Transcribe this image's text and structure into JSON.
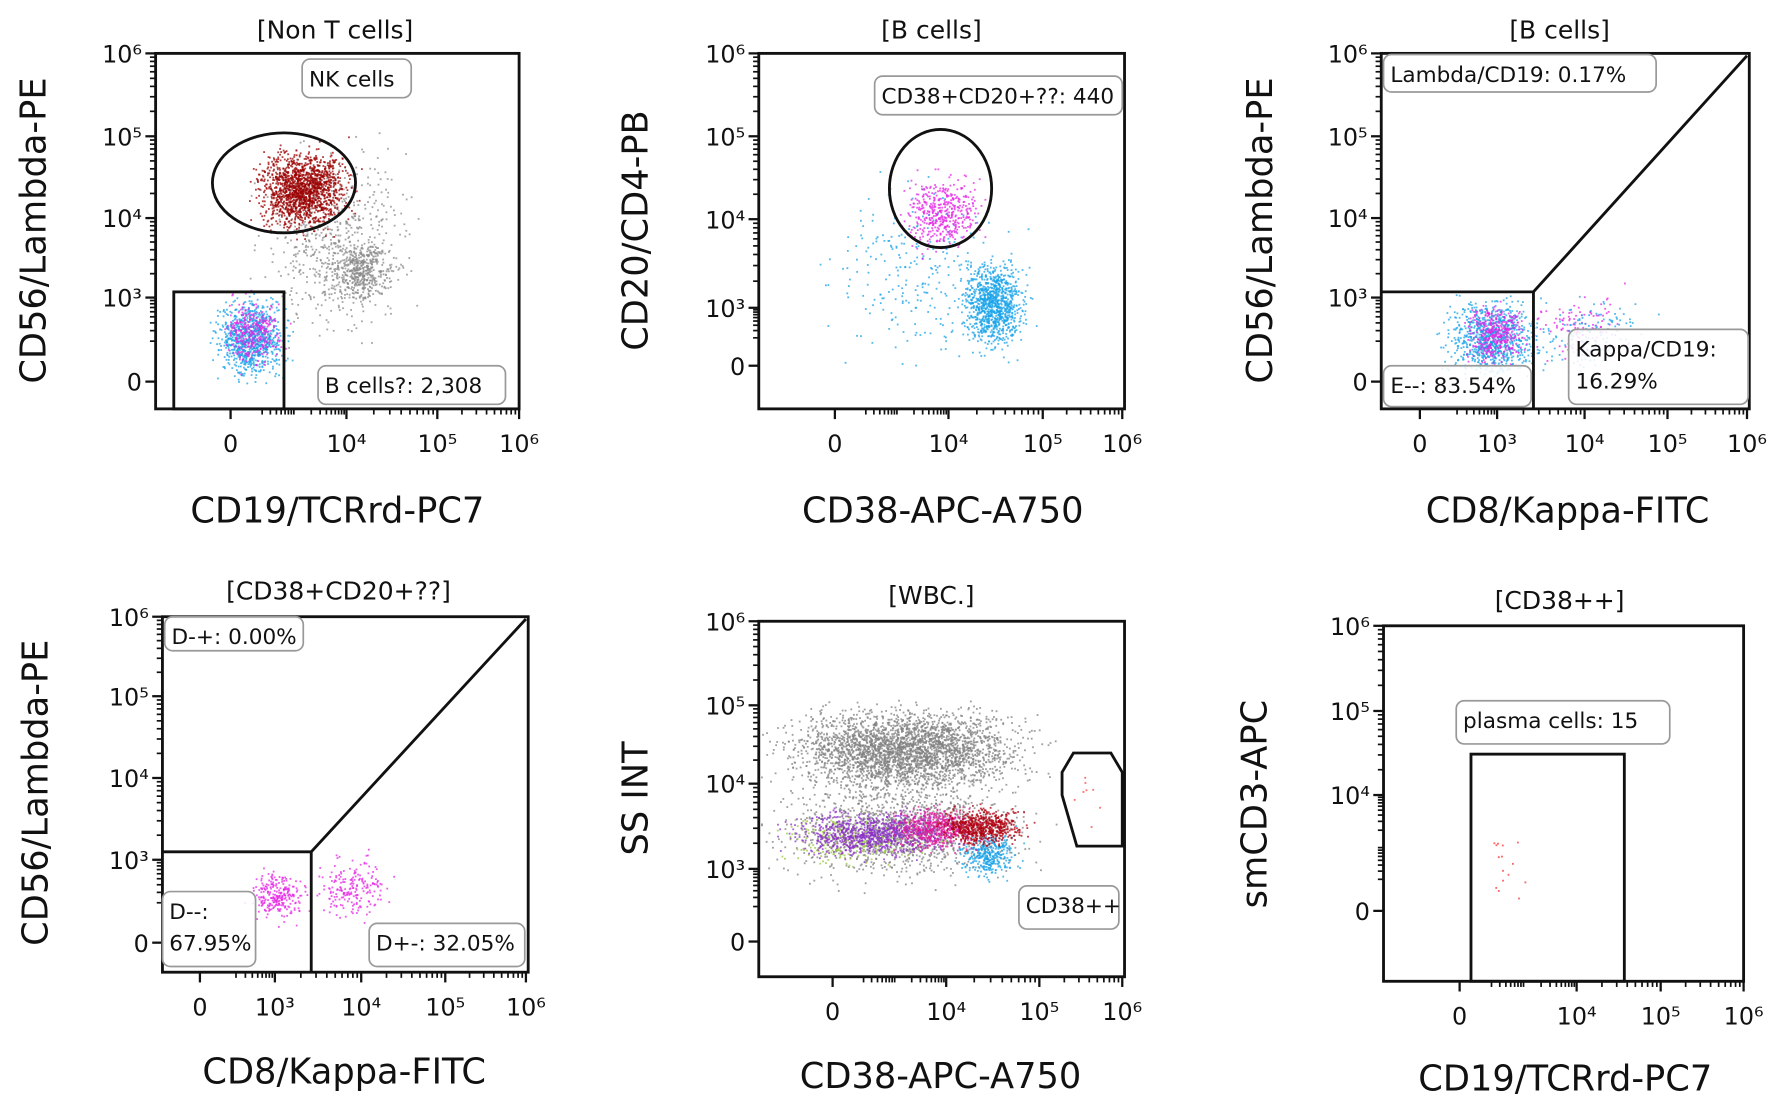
{
  "chart_data": [
    {
      "type": "scatter",
      "title": "[Non T cells]",
      "xlabel": "CD19/TCRrd-PC7",
      "ylabel": "CD56/Lambda-PE",
      "x_ticks": [
        "0",
        "10⁴",
        "10⁵",
        "10⁶"
      ],
      "y_ticks": [
        "0",
        "10³",
        "10⁴",
        "10⁵",
        "10⁶"
      ],
      "scale": "biexponential",
      "populations": [
        {
          "color": "#8a8a8a",
          "x": [
            300,
            40000
          ],
          "y": [
            400,
            60000
          ],
          "n": 600
        },
        {
          "color": "#8a8a8a",
          "x": [
            5000,
            30000
          ],
          "y": [
            1000,
            5000
          ],
          "n": 450
        },
        {
          "color": "#9b0000",
          "x": [
            200,
            8000
          ],
          "y": [
            8000,
            60000
          ],
          "n": 1500
        },
        {
          "color": "#1aa3e8",
          "x": [
            -50,
            500
          ],
          "y": [
            30,
            800
          ],
          "n": 900
        },
        {
          "color": "#e526e5",
          "x": [
            -20,
            450
          ],
          "y": [
            80,
            900
          ],
          "n": 300
        }
      ],
      "gates": [
        {
          "label": [
            "NK cells"
          ]
        },
        {
          "label": [
            "B cells?: 2,308"
          ]
        }
      ]
    },
    {
      "type": "scatter",
      "title": "[B cells]",
      "xlabel": "CD38-APC-A750",
      "ylabel": "CD20/CD4-PB",
      "x_ticks": [
        "0",
        "10⁴",
        "10⁵",
        "10⁶"
      ],
      "y_ticks": [
        "0",
        "10³",
        "10⁴",
        "10⁵",
        "10⁶"
      ],
      "scale": "biexponential",
      "populations": [
        {
          "color": "#1aa3e8",
          "x": [
            15000,
            60000
          ],
          "y": [
            150,
            3000
          ],
          "n": 1000
        },
        {
          "color": "#1aa3e8",
          "x": [
            0,
            40000
          ],
          "y": [
            100,
            20000
          ],
          "n": 260
        },
        {
          "color": "#e526e5",
          "x": [
            1500,
            20000
          ],
          "y": [
            5000,
            30000
          ],
          "n": 440
        }
      ],
      "gates": [
        {
          "label": [
            "CD38+CD20+??: 440"
          ]
        }
      ]
    },
    {
      "type": "scatter",
      "title": "[B cells]",
      "xlabel": "CD8/Kappa-FITC",
      "ylabel": "CD56/Lambda-PE",
      "x_ticks": [
        "0",
        "10³",
        "10⁴",
        "10⁵",
        "10⁶"
      ],
      "y_ticks": [
        "0",
        "10³",
        "10⁴",
        "10⁵",
        "10⁶"
      ],
      "scale": "biexponential",
      "populations": [
        {
          "color": "#1aa3e8",
          "x": [
            150,
            2500
          ],
          "y": [
            30,
            800
          ],
          "n": 900
        },
        {
          "color": "#e526e5",
          "x": [
            300,
            2000
          ],
          "y": [
            80,
            700
          ],
          "n": 350
        },
        {
          "color": "#e526e5",
          "x": [
            3000,
            25000
          ],
          "y": [
            100,
            1000
          ],
          "n": 120
        },
        {
          "color": "#1aa3e8",
          "x": [
            3000,
            40000
          ],
          "y": [
            50,
            900
          ],
          "n": 150
        }
      ],
      "gates": [
        {
          "label": [
            "Lambda/CD19: 0.17%"
          ]
        },
        {
          "label": [
            "E--: 83.54%"
          ]
        },
        {
          "label": [
            "Kappa/CD19:",
            "16.29%"
          ]
        }
      ]
    },
    {
      "type": "scatter",
      "title": "[CD38+CD20+??]",
      "xlabel": "CD8/Kappa-FITC",
      "ylabel": "CD56/Lambda-PE",
      "x_ticks": [
        "0",
        "10³",
        "10⁴",
        "10⁵",
        "10⁶"
      ],
      "y_ticks": [
        "0",
        "10³",
        "10⁴",
        "10⁵",
        "10⁶"
      ],
      "scale": "biexponential",
      "populations": [
        {
          "color": "#e526e5",
          "x": [
            400,
            2000
          ],
          "y": [
            100,
            600
          ],
          "n": 250
        },
        {
          "color": "#e526e5",
          "x": [
            3500,
            20000
          ],
          "y": [
            100,
            1000
          ],
          "n": 200
        }
      ],
      "gates": [
        {
          "label": [
            "D-+: 0.00%"
          ]
        },
        {
          "label": [
            "D--:",
            "67.95%"
          ]
        },
        {
          "label": [
            "D+-: 32.05%"
          ]
        }
      ]
    },
    {
      "type": "scatter",
      "title": "[WBC.]",
      "xlabel": "CD38-APC-A750",
      "ylabel": "SS INT",
      "x_ticks": [
        "0",
        "10⁴",
        "10⁵",
        "10⁶"
      ],
      "y_ticks": [
        "0",
        "10³",
        "10⁴",
        "10⁵",
        "10⁶"
      ],
      "scale": "biexponential",
      "populations": [
        {
          "color": "#808080",
          "x": [
            -200,
            50000
          ],
          "y": [
            9000,
            80000
          ],
          "n": 3000
        },
        {
          "color": "#808080",
          "x": [
            -300,
            50000
          ],
          "y": [
            800,
            9000
          ],
          "n": 1200
        },
        {
          "color": "#9bc53d",
          "x": [
            -500,
            3000
          ],
          "y": [
            1200,
            4000
          ],
          "n": 300
        },
        {
          "color": "#1aa3e8",
          "x": [
            15000,
            50000
          ],
          "y": [
            800,
            2500
          ],
          "n": 350
        },
        {
          "color": "#8b2fc9",
          "x": [
            -200,
            10000
          ],
          "y": [
            1500,
            4500
          ],
          "n": 900
        },
        {
          "color": "#e0189a",
          "x": [
            1000,
            20000
          ],
          "y": [
            1800,
            5000
          ],
          "n": 500
        },
        {
          "color": "#b00010",
          "x": [
            10000,
            60000
          ],
          "y": [
            2000,
            5000
          ],
          "n": 600
        },
        {
          "color": "#ff4040",
          "x": [
            200000,
            600000
          ],
          "y": [
            4000,
            15000
          ],
          "n": 8
        }
      ],
      "gates": [
        {
          "label": [
            "CD38++"
          ]
        }
      ]
    },
    {
      "type": "scatter",
      "title": "[CD38++]",
      "xlabel": "CD19/TCRrd-PC7",
      "ylabel": "smCD3-APC",
      "x_ticks": [
        "0",
        "10⁴",
        "10⁵",
        "10⁶"
      ],
      "y_ticks": [
        "0",
        "10⁴",
        "10⁵",
        "10⁶"
      ],
      "scale": "biexponential",
      "populations": [
        {
          "color": "#ff3030",
          "x": [
            80,
            2500
          ],
          "y": [
            10,
            4000
          ],
          "n": 15
        }
      ],
      "gates": [
        {
          "label": [
            "plasma cells: 15"
          ]
        }
      ]
    }
  ]
}
